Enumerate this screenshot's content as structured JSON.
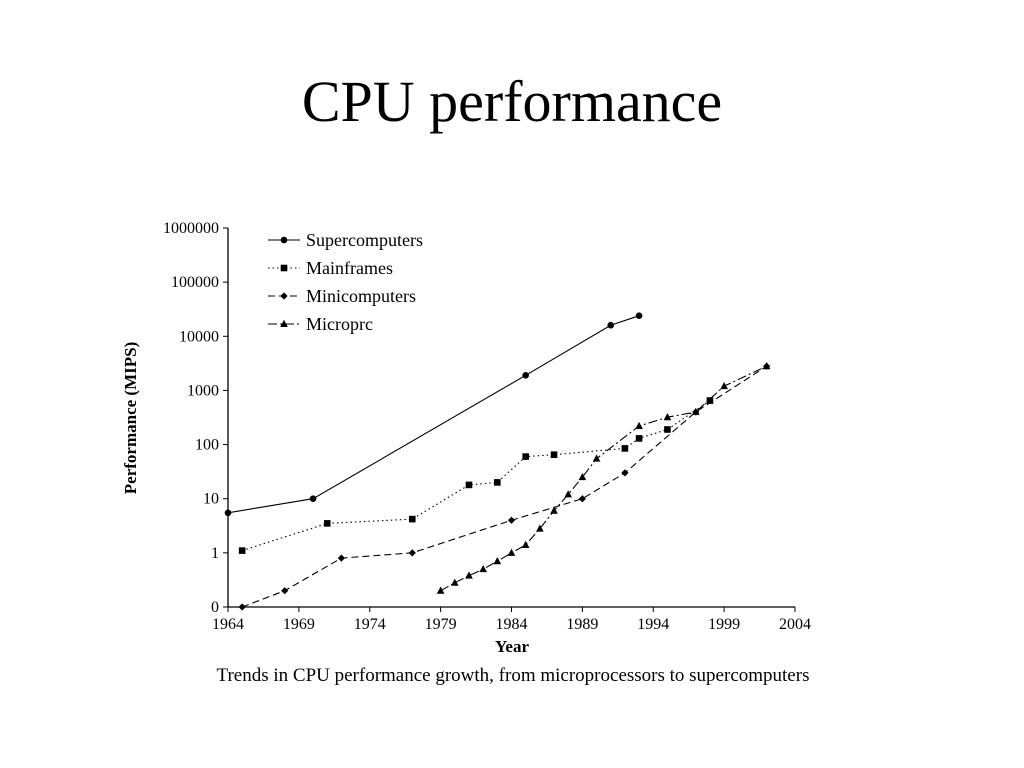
{
  "slide": {
    "title": "CPU performance"
  },
  "chart_data": {
    "type": "line",
    "title": "",
    "xlabel": "Year",
    "ylabel": "Performance (MIPS)",
    "caption": "Trends in CPU performance growth, from microprocessors to supercomputers",
    "xlim": [
      1964,
      2004
    ],
    "ylim_exp": [
      -1,
      6
    ],
    "y_scale": "log",
    "grid": false,
    "legend_position": "top-left",
    "x_ticks": [
      "1964",
      "1969",
      "1974",
      "1979",
      "1984",
      "1989",
      "1994",
      "1999",
      "2004"
    ],
    "y_ticks": [
      "0",
      "1",
      "10",
      "100",
      "1000",
      "10000",
      "100000",
      "1000000"
    ],
    "series": [
      {
        "name": "Supercomputers",
        "marker": "circle",
        "dash": "solid",
        "x": [
          1964,
          1970,
          1985,
          1991,
          1993
        ],
        "y": [
          5.5,
          10,
          1900,
          16000,
          24000
        ]
      },
      {
        "name": "Mainframes",
        "marker": "square",
        "dash": "dotted",
        "x": [
          1965,
          1971,
          1977,
          1981,
          1983,
          1985,
          1987,
          1992,
          1993,
          1995,
          1998
        ],
        "y": [
          1.1,
          3.5,
          4.2,
          18,
          20,
          60,
          65,
          85,
          130,
          190,
          650
        ]
      },
      {
        "name": "Minicomputers",
        "marker": "diamond",
        "dash": "dashed",
        "x": [
          1965,
          1968,
          1972,
          1977,
          1984,
          1989,
          1992,
          1997,
          2002
        ],
        "y": [
          0.1,
          0.2,
          0.8,
          1.0,
          4.0,
          10,
          30,
          400,
          2800
        ]
      },
      {
        "name": "Microprc",
        "marker": "triangle",
        "dash": "dash-dot",
        "x": [
          1979,
          1980,
          1981,
          1982,
          1983,
          1984,
          1985,
          1986,
          1987,
          1988,
          1989,
          1990,
          1993,
          1995,
          1997,
          1999,
          2002
        ],
        "y": [
          0.2,
          0.28,
          0.38,
          0.5,
          0.7,
          1.0,
          1.4,
          2.8,
          6,
          12,
          25,
          55,
          220,
          320,
          400,
          1200,
          2800
        ]
      }
    ]
  }
}
